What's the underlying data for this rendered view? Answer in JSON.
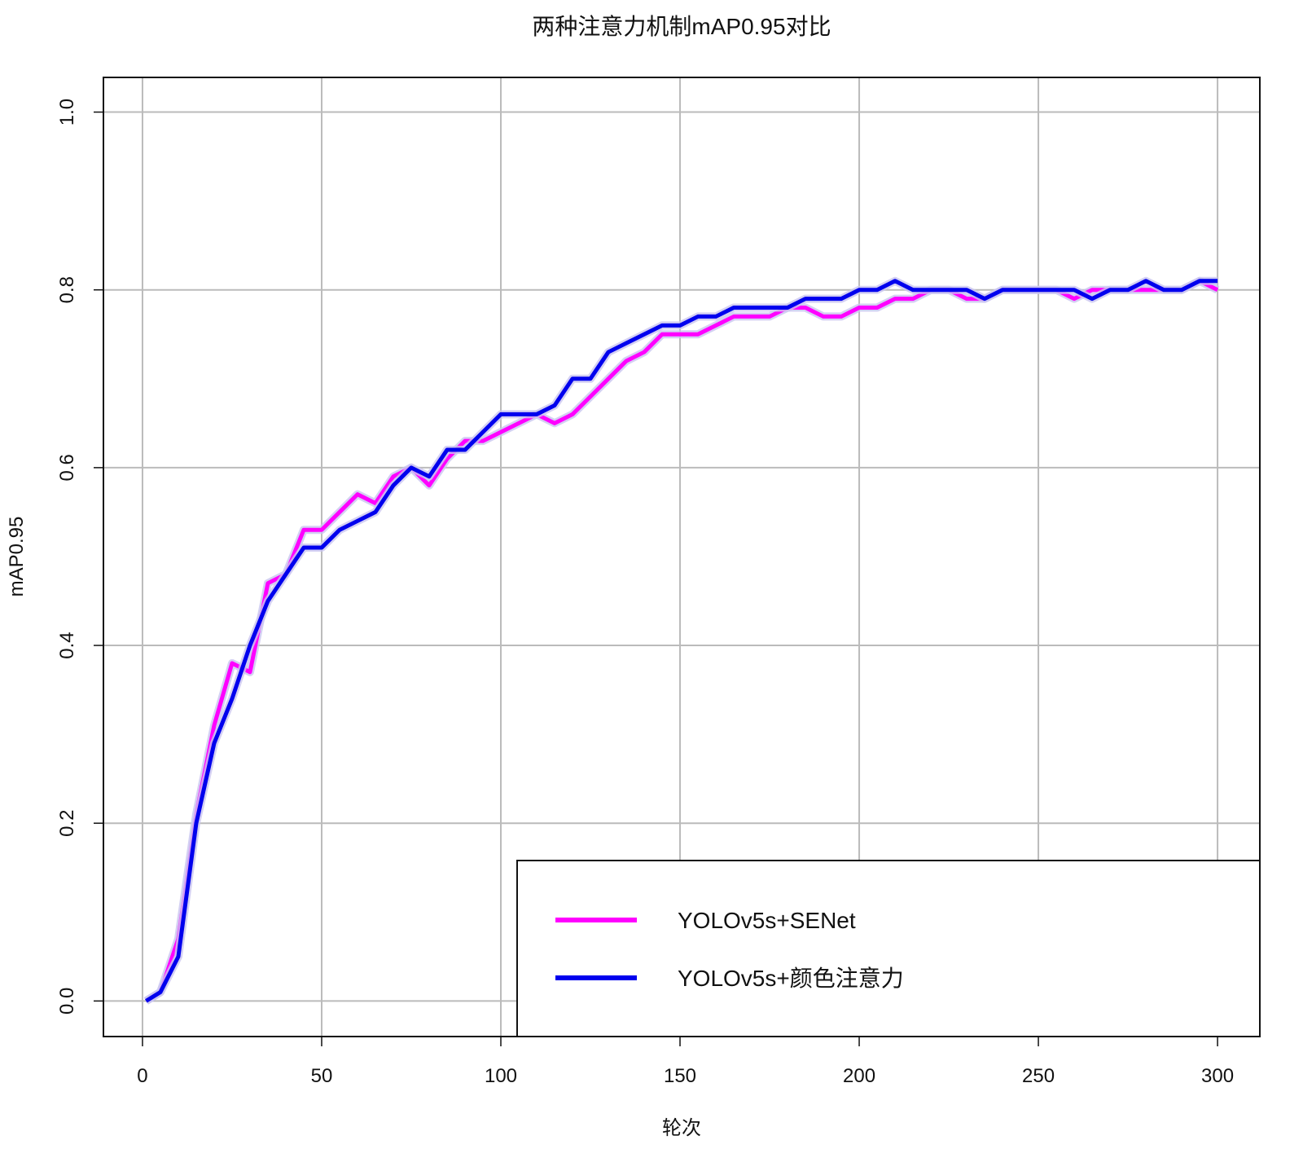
{
  "chart_data": {
    "type": "line",
    "title": "两种注意力机制mAP0.95对比",
    "x_label": "轮次",
    "y_label": "mAP0.95",
    "x": [
      1,
      5,
      10,
      15,
      20,
      25,
      30,
      35,
      40,
      45,
      50,
      55,
      60,
      65,
      70,
      75,
      80,
      85,
      90,
      95,
      100,
      105,
      110,
      115,
      120,
      125,
      130,
      135,
      140,
      145,
      150,
      155,
      160,
      165,
      170,
      175,
      180,
      185,
      190,
      195,
      200,
      205,
      210,
      215,
      220,
      225,
      230,
      235,
      240,
      245,
      250,
      255,
      260,
      265,
      270,
      275,
      280,
      285,
      290,
      295,
      300
    ],
    "series": [
      {
        "name": "YOLOv5s+SENet",
        "color": "#ff00ff",
        "values": [
          0.0,
          0.01,
          0.07,
          0.21,
          0.31,
          0.38,
          0.37,
          0.47,
          0.48,
          0.53,
          0.53,
          0.55,
          0.57,
          0.56,
          0.59,
          0.6,
          0.58,
          0.61,
          0.63,
          0.63,
          0.64,
          0.65,
          0.66,
          0.65,
          0.66,
          0.68,
          0.7,
          0.72,
          0.73,
          0.75,
          0.75,
          0.75,
          0.76,
          0.77,
          0.77,
          0.77,
          0.78,
          0.78,
          0.77,
          0.77,
          0.78,
          0.78,
          0.79,
          0.79,
          0.8,
          0.8,
          0.79,
          0.79,
          0.8,
          0.8,
          0.8,
          0.8,
          0.79,
          0.8,
          0.8,
          0.8,
          0.8,
          0.8,
          0.8,
          0.81,
          0.8
        ]
      },
      {
        "name": "YOLOv5s+颜色注意力",
        "color": "#0000ee",
        "values": [
          0.0,
          0.01,
          0.05,
          0.2,
          0.29,
          0.34,
          0.4,
          0.45,
          0.48,
          0.51,
          0.51,
          0.53,
          0.54,
          0.55,
          0.58,
          0.6,
          0.59,
          0.62,
          0.62,
          0.64,
          0.66,
          0.66,
          0.66,
          0.67,
          0.7,
          0.7,
          0.73,
          0.74,
          0.75,
          0.76,
          0.76,
          0.77,
          0.77,
          0.78,
          0.78,
          0.78,
          0.78,
          0.79,
          0.79,
          0.79,
          0.8,
          0.8,
          0.81,
          0.8,
          0.8,
          0.8,
          0.8,
          0.79,
          0.8,
          0.8,
          0.8,
          0.8,
          0.8,
          0.79,
          0.8,
          0.8,
          0.81,
          0.8,
          0.8,
          0.81,
          0.81
        ]
      }
    ],
    "xlim": [
      -10.9,
      311.8
    ],
    "ylim": [
      -0.04,
      1.039
    ],
    "xticks": [
      0,
      50,
      100,
      150,
      200,
      250,
      300
    ],
    "yticks": [
      {
        "value": 0,
        "label": "0.0"
      },
      {
        "value": 0.2,
        "label": "0.2"
      },
      {
        "value": 0.4,
        "label": "0.4"
      },
      {
        "value": 0.6,
        "label": "0.6"
      },
      {
        "value": 0.8,
        "label": "0.8"
      },
      {
        "value": 1,
        "label": "1.0"
      }
    ],
    "grid": true,
    "legend_position": "bottomright"
  }
}
